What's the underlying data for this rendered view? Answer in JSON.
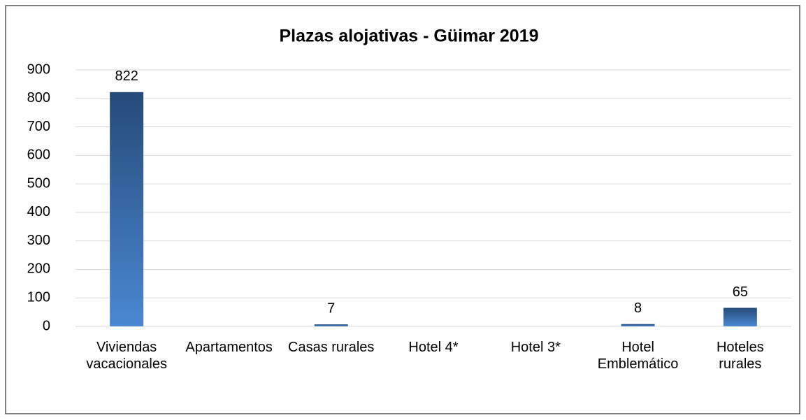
{
  "chart_data": {
    "type": "bar",
    "title": "Plazas alojativas - Güimar 2019",
    "categories": [
      "Viviendas vacacionales",
      "Apartamentos",
      "Casas rurales",
      "Hotel 4*",
      "Hotel 3*",
      "Hotel Emblemático",
      "Hoteles rurales"
    ],
    "values": [
      822,
      null,
      7,
      null,
      null,
      8,
      65
    ],
    "color": "#3a6fb0",
    "ylim": [
      0,
      900
    ],
    "yticks": [
      0,
      100,
      200,
      300,
      400,
      500,
      600,
      700,
      800,
      900
    ],
    "grid": true
  }
}
